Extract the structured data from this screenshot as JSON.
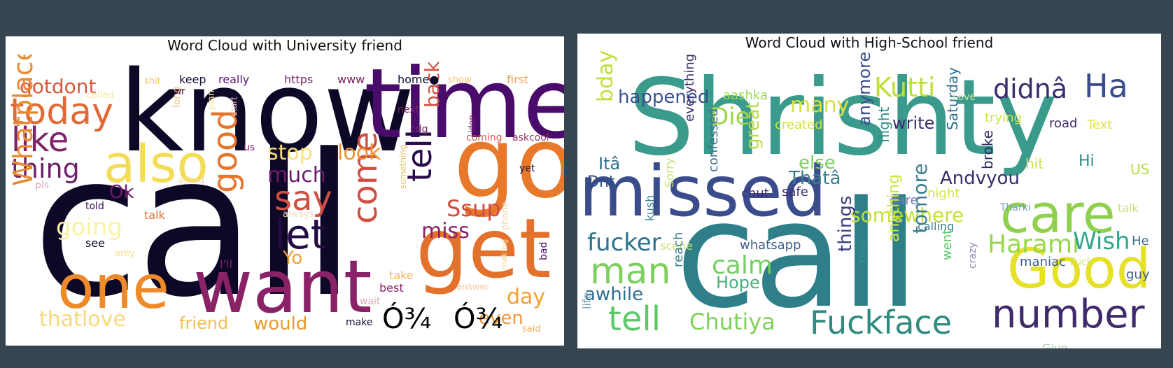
{
  "panels": [
    {
      "id": "university",
      "title": "Word Cloud with University friend",
      "words": [
        {
          "text": "call",
          "color": "#0c0826"
        },
        {
          "text": "know",
          "color": "#0c0826"
        },
        {
          "text": "time",
          "color": "#4a0c6b"
        },
        {
          "text": "go",
          "color": "#e8792a"
        },
        {
          "text": "get",
          "color": "#e3702b"
        },
        {
          "text": "want",
          "color": "#8a2268"
        },
        {
          "text": "one",
          "color": "#ef8a2a"
        },
        {
          "text": "also",
          "color": "#f4dc57"
        },
        {
          "text": "today",
          "color": "#e06a36"
        },
        {
          "text": "like",
          "color": "#7e2467"
        },
        {
          "text": "thing",
          "color": "#6f1f68"
        },
        {
          "text": "gotdont",
          "color": "#d8573b"
        },
        {
          "text": "good",
          "color": "#e5752b"
        },
        {
          "text": "say",
          "color": "#d14f42"
        },
        {
          "text": "let",
          "color": "#230b46"
        },
        {
          "text": "come",
          "color": "#d14f42"
        },
        {
          "text": "tell",
          "color": "#2a0c4e"
        },
        {
          "text": "Ssup",
          "color": "#cf4d44"
        },
        {
          "text": "miss",
          "color": "#8a2268"
        },
        {
          "text": "look",
          "color": "#ef9230"
        },
        {
          "text": "stop",
          "color": "#f7e27d"
        },
        {
          "text": "much",
          "color": "#6b1a6e"
        },
        {
          "text": "back",
          "color": "#d14f42"
        },
        {
          "text": "Whatplace",
          "color": "#e98a30"
        },
        {
          "text": "going",
          "color": "#f9f3a3"
        },
        {
          "text": "thatlove",
          "color": "#f5d97a"
        },
        {
          "text": "friend",
          "color": "#f3be53"
        },
        {
          "text": "would",
          "color": "#e99a31"
        },
        {
          "text": "day",
          "color": "#f0a132"
        },
        {
          "text": "even",
          "color": "#ef9838"
        },
        {
          "text": "Ok",
          "color": "#6b1a6e"
        },
        {
          "text": "Yo",
          "color": "#f0a132"
        },
        {
          "text": "Ó¾",
          "color": "#000000"
        },
        {
          "text": "Ó¾",
          "color": "#000000"
        },
        {
          "text": "keep",
          "color": "#1b0b3b"
        },
        {
          "text": "really",
          "color": "#5a157a"
        },
        {
          "text": "https",
          "color": "#7a2566"
        },
        {
          "text": "www",
          "color": "#7a2566"
        },
        {
          "text": "home●",
          "color": "#0c0826"
        },
        {
          "text": "show",
          "color": "#f7c26b"
        },
        {
          "text": "first",
          "color": "#f1a35a"
        },
        {
          "text": "shit",
          "color": "#f6c464"
        },
        {
          "text": "ur",
          "color": "#4a0c6b"
        },
        {
          "text": "called",
          "color": "#f9e8a3"
        },
        {
          "text": "long",
          "color": "#f2c48a"
        },
        {
          "text": "plan",
          "color": "#f7e8a5"
        },
        {
          "text": "start",
          "color": "#f5c8c5"
        },
        {
          "text": "us",
          "color": "#8a2268"
        },
        {
          "text": "next",
          "color": "#7e2467"
        },
        {
          "text": "cdg",
          "color": "#7e2467"
        },
        {
          "text": "coming",
          "color": "#d6604d"
        },
        {
          "text": "askcool",
          "color": "#9a3966"
        },
        {
          "text": "idon",
          "color": "#7e2467"
        },
        {
          "text": "yet",
          "color": "#1b0b3b"
        },
        {
          "text": "pls",
          "color": "#d9a8b8"
        },
        {
          "text": "asked",
          "color": "#f4d8a0"
        },
        {
          "text": "told",
          "color": "#3d0f5f"
        },
        {
          "text": "talk",
          "color": "#e06a36"
        },
        {
          "text": "always",
          "color": "#f3dcc4"
        },
        {
          "text": "something",
          "color": "#f0c06a"
        },
        {
          "text": "phone",
          "color": "#f2d6b0"
        },
        {
          "text": "see",
          "color": "#0c0826"
        },
        {
          "text": "arey",
          "color": "#f5e08a"
        },
        {
          "text": "I'll",
          "color": "#7e2467"
        },
        {
          "text": "take",
          "color": "#f3b05a"
        },
        {
          "text": "best",
          "color": "#8a2268"
        },
        {
          "text": "answer",
          "color": "#f6cba0"
        },
        {
          "text": "making",
          "color": "#f6d690"
        },
        {
          "text": "bad",
          "color": "#4a0c6b"
        },
        {
          "text": "wait",
          "color": "#d8a8b8"
        },
        {
          "text": "make",
          "color": "#1b0b3b"
        },
        {
          "text": "said",
          "color": "#f5b05a"
        }
      ]
    },
    {
      "id": "highschool",
      "title": "Word Cloud with High-School friend",
      "words": [
        {
          "text": "Shrishty",
          "color": "#3a9a8c"
        },
        {
          "text": "call",
          "color": "#2f7f8a"
        },
        {
          "text": "missed",
          "color": "#3b4c8c"
        },
        {
          "text": "care",
          "color": "#8fd14f"
        },
        {
          "text": "Good",
          "color": "#e6e028"
        },
        {
          "text": "number",
          "color": "#3f2a6b"
        },
        {
          "text": "Fuckface",
          "color": "#2f8a7f"
        },
        {
          "text": "tell",
          "color": "#5cc86a"
        },
        {
          "text": "Chutiya",
          "color": "#7fd25a"
        },
        {
          "text": "man",
          "color": "#7fcf60"
        },
        {
          "text": "fucker",
          "color": "#2c728e"
        },
        {
          "text": "calm",
          "color": "#75cf64"
        },
        {
          "text": "Hope",
          "color": "#46b07a"
        },
        {
          "text": "awhile",
          "color": "#2e6e8e"
        },
        {
          "text": "Harami",
          "color": "#97d84a"
        },
        {
          "text": "Wish",
          "color": "#34a58c"
        },
        {
          "text": "Kutti",
          "color": "#bfe03a"
        },
        {
          "text": "didnâ",
          "color": "#3b2c6e"
        },
        {
          "text": "Ha",
          "color": "#3b4c8c"
        },
        {
          "text": "Die",
          "color": "#9dd84a"
        },
        {
          "text": "many",
          "color": "#d9e33b"
        },
        {
          "text": "happened",
          "color": "#3a4f8e"
        },
        {
          "text": "aashka",
          "color": "#9ad94c"
        },
        {
          "text": "created",
          "color": "#d6e43c"
        },
        {
          "text": "write",
          "color": "#3a2e6e"
        },
        {
          "text": "Saturday",
          "color": "#2c6e8e"
        },
        {
          "text": "trying",
          "color": "#cfe540"
        },
        {
          "text": "road",
          "color": "#3f2a6b"
        },
        {
          "text": "Text",
          "color": "#e3e33a"
        },
        {
          "text": "Love",
          "color": "#d6e8a0"
        },
        {
          "text": "bday",
          "color": "#bfe03a"
        },
        {
          "text": "Itâ",
          "color": "#2f6f8e"
        },
        {
          "text": "Dnt",
          "color": "#2c4e7e"
        },
        {
          "text": "everything",
          "color": "#3b2c6e"
        },
        {
          "text": "great",
          "color": "#b9dc4a"
        },
        {
          "text": "else",
          "color": "#78d05e"
        },
        {
          "text": "Thatâ",
          "color": "#3e7f8e"
        },
        {
          "text": "anymore",
          "color": "#3a4f8e"
        },
        {
          "text": "flight",
          "color": "#2f8f8a"
        },
        {
          "text": "hit",
          "color": "#cfe540"
        },
        {
          "text": "Hi",
          "color": "#2f8a7f"
        },
        {
          "text": "US",
          "color": "#b9dc4a"
        },
        {
          "text": "broke",
          "color": "#2a2a5e"
        },
        {
          "text": "night",
          "color": "#d6e43c"
        },
        {
          "text": "Andvyou",
          "color": "#3a2e6e"
        },
        {
          "text": "dare",
          "color": "#7a7ab8"
        },
        {
          "text": "chut",
          "color": "#3f2a6b"
        },
        {
          "text": "safe",
          "color": "#3f2a6b"
        },
        {
          "text": "confessed",
          "color": "#3e6f8e"
        },
        {
          "text": "Sorry",
          "color": "#c7e278"
        },
        {
          "text": "kush",
          "color": "#3e7f8e"
        },
        {
          "text": "scene",
          "color": "#c7e278"
        },
        {
          "text": "somewhere",
          "color": "#c5e03a"
        },
        {
          "text": "Tharki",
          "color": "#7aa0c0"
        },
        {
          "text": "talk",
          "color": "#c7e278"
        },
        {
          "text": "calling",
          "color": "#3e7f8e"
        },
        {
          "text": "He",
          "color": "#3f6f8e"
        },
        {
          "text": "whatsapp",
          "color": "#3e5f8e"
        },
        {
          "text": "things",
          "color": "#3a3e7e"
        },
        {
          "text": "free",
          "color": "#2f8f8a"
        },
        {
          "text": "anything",
          "color": "#cfe540"
        },
        {
          "text": "tomore",
          "color": "#3e7f8e"
        },
        {
          "text": "went",
          "color": "#5cc86a"
        },
        {
          "text": "crazy",
          "color": "#8a8ab8"
        },
        {
          "text": "maniac",
          "color": "#3e5f8e"
        },
        {
          "text": "Fuck",
          "color": "#c7e278"
        },
        {
          "text": "guy",
          "color": "#3e5f8e"
        },
        {
          "text": "reach",
          "color": "#3e7f8e"
        },
        {
          "text": "life",
          "color": "#7aa0c0"
        },
        {
          "text": "Give",
          "color": "#a8c8b8"
        }
      ]
    }
  ]
}
